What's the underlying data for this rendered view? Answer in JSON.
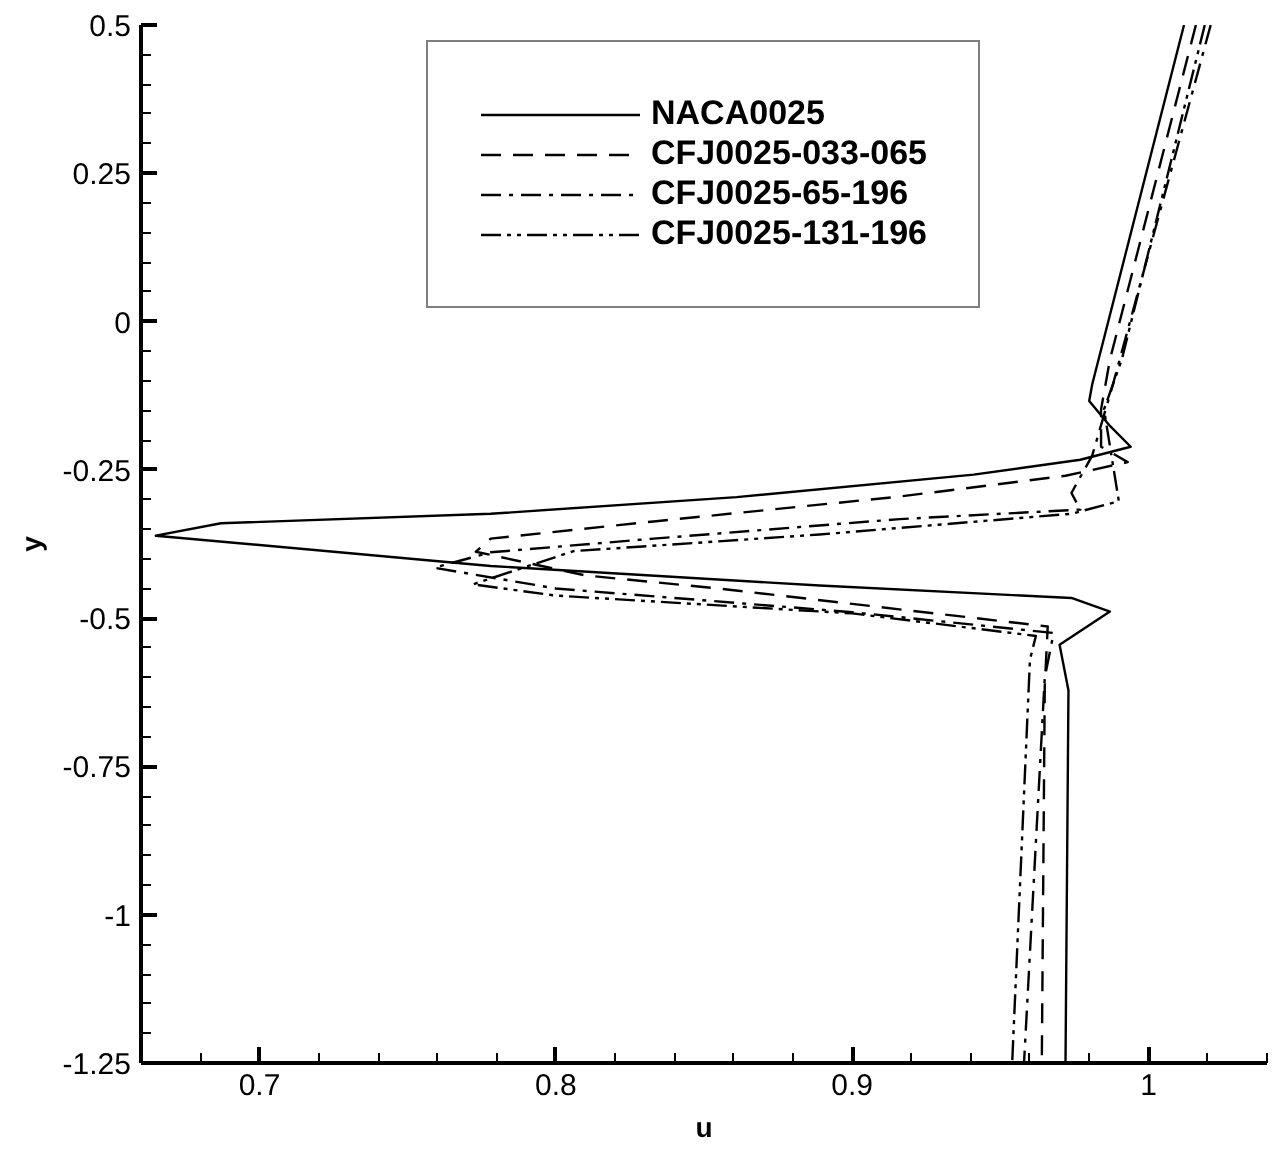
{
  "chart_data": {
    "type": "line",
    "xlabel": "u",
    "ylabel": "y",
    "xlim": [
      0.66,
      1.04
    ],
    "ylim": [
      -1.25,
      0.5
    ],
    "xticks": [
      {
        "value": 0.66,
        "label": null
      },
      {
        "value": 0.68,
        "label": null
      },
      0.7,
      {
        "value": 0.72,
        "label": null
      },
      {
        "value": 0.74,
        "label": null
      },
      {
        "value": 0.76,
        "label": null
      },
      {
        "value": 0.78,
        "label": null
      },
      0.8,
      {
        "value": 0.82,
        "label": null
      },
      {
        "value": 0.84,
        "label": null
      },
      {
        "value": 0.86,
        "label": null
      },
      {
        "value": 0.88,
        "label": null
      },
      0.9,
      {
        "value": 0.92,
        "label": null
      },
      {
        "value": 0.94,
        "label": null
      },
      {
        "value": 0.96,
        "label": null
      },
      {
        "value": 0.98,
        "label": null
      },
      1,
      {
        "value": 1.02,
        "label": null
      },
      {
        "value": 1.04,
        "label": null
      }
    ],
    "yticks": [
      -1.25,
      {
        "value": -1.2,
        "label": null
      },
      {
        "value": -1.15,
        "label": null
      },
      {
        "value": -1.1,
        "label": null
      },
      {
        "value": -1.05,
        "label": null
      },
      -1,
      {
        "value": -0.95,
        "label": null
      },
      {
        "value": -0.9,
        "label": null
      },
      {
        "value": -0.85,
        "label": null
      },
      {
        "value": -0.8,
        "label": null
      },
      -0.75,
      {
        "value": -0.7,
        "label": null
      },
      {
        "value": -0.65,
        "label": null
      },
      {
        "value": -0.6,
        "label": null
      },
      {
        "value": -0.55,
        "label": null
      },
      -0.5,
      {
        "value": -0.45,
        "label": null
      },
      {
        "value": -0.4,
        "label": null
      },
      {
        "value": -0.35,
        "label": null
      },
      {
        "value": -0.3,
        "label": null
      },
      -0.25,
      {
        "value": -0.2,
        "label": null
      },
      {
        "value": -0.15,
        "label": null
      },
      {
        "value": -0.1,
        "label": null
      },
      {
        "value": -0.05,
        "label": null
      },
      0,
      {
        "value": 0.05,
        "label": null
      },
      {
        "value": 0.1,
        "label": null
      },
      {
        "value": 0.15,
        "label": null
      },
      {
        "value": 0.2,
        "label": null
      },
      0.25,
      {
        "value": 0.3,
        "label": null
      },
      {
        "value": 0.35,
        "label": null
      },
      {
        "value": 0.4,
        "label": null
      },
      {
        "value": 0.45,
        "label": null
      },
      0.5
    ],
    "grid": false,
    "legend": "top",
    "marker": "none",
    "series": [
      {
        "name": "NACA0025",
        "color": "#000000",
        "line_style": "solid",
        "x": [
          1.012,
          0.981,
          0.98,
          0.987,
          0.994,
          0.977,
          0.941,
          0.861,
          0.778,
          0.687,
          0.665,
          0.778,
          0.889,
          0.974,
          0.987,
          0.97,
          0.973,
          0.972
        ],
        "values": [
          0.5,
          -0.106,
          -0.134,
          -0.176,
          -0.211,
          -0.233,
          -0.258,
          -0.296,
          -0.324,
          -0.34,
          -0.361,
          -0.412,
          -0.445,
          -0.466,
          -0.489,
          -0.545,
          -0.622,
          -1.25
        ]
      },
      {
        "name": "CFJ0025-033-065",
        "color": "#000000",
        "line_style": "dashed",
        "x": [
          1.016,
          0.987,
          0.984,
          0.984,
          0.993,
          0.972,
          0.916,
          0.833,
          0.778,
          0.773,
          0.81,
          0.855,
          0.966,
          0.965,
          0.964
        ],
        "values": [
          0.5,
          -0.064,
          -0.148,
          -0.211,
          -0.237,
          -0.26,
          -0.295,
          -0.337,
          -0.366,
          -0.388,
          -0.428,
          -0.45,
          -0.514,
          -0.615,
          -1.25
        ]
      },
      {
        "name": "CFJ0025-65-196",
        "color": "#000000",
        "line_style": "dashdot",
        "x": [
          1.021,
          0.988,
          0.981,
          0.974,
          0.977,
          0.916,
          0.833,
          0.778,
          0.759,
          0.8,
          0.9,
          0.968,
          0.965,
          0.958
        ],
        "values": [
          0.5,
          -0.106,
          -0.226,
          -0.289,
          -0.317,
          -0.333,
          -0.366,
          -0.389,
          -0.415,
          -0.45,
          -0.49,
          -0.525,
          -0.6,
          -1.25
        ]
      },
      {
        "name": "CFJ0025-131-196",
        "color": "#000000",
        "line_style": "dashdotdot",
        "x": [
          1.019,
          0.991,
          0.985,
          0.99,
          0.974,
          0.889,
          0.806,
          0.772,
          0.8,
          0.9,
          0.962,
          0.96,
          0.954
        ],
        "values": [
          0.5,
          -0.064,
          -0.148,
          -0.303,
          -0.324,
          -0.359,
          -0.387,
          -0.443,
          -0.462,
          -0.492,
          -0.53,
          -0.57,
          -1.25
        ]
      }
    ]
  }
}
